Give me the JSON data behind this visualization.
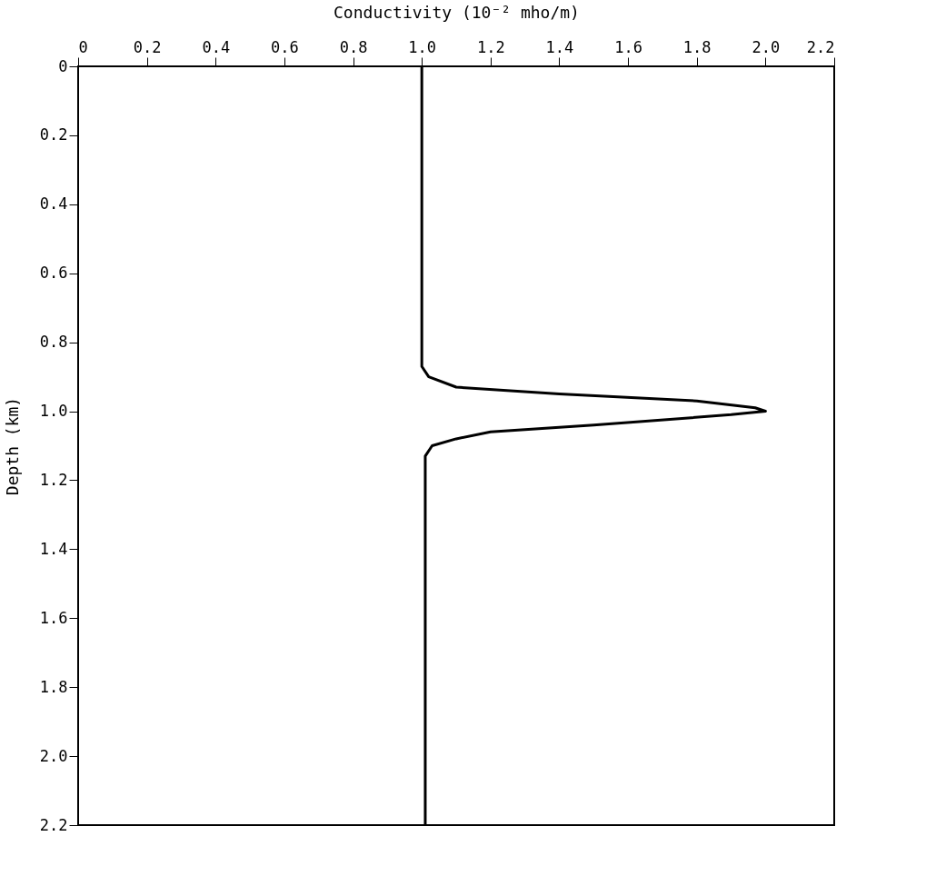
{
  "chart_data": {
    "type": "line",
    "xlabel": "Conductivity (10⁻² mho/m)",
    "ylabel": "Depth (km)",
    "series": [
      {
        "color": "#000000",
        "x": [
          1.0,
          1.0,
          1.02,
          1.1,
          1.4,
          1.8,
          1.97,
          2.0,
          1.9,
          1.5,
          1.2,
          1.1,
          1.03,
          1.01,
          1.01
        ],
        "values": [
          0,
          0.87,
          0.9,
          0.93,
          0.95,
          0.97,
          0.99,
          1.0,
          1.01,
          1.04,
          1.06,
          1.08,
          1.1,
          1.13,
          2.2
        ]
      }
    ],
    "xlim": [
      0,
      2.2
    ],
    "ylim": [
      2.2,
      0
    ],
    "xticks": [
      0,
      0.2,
      0.4,
      0.6,
      0.8,
      {
        "value": 1,
        "label": "1.0"
      },
      1.2,
      1.4,
      1.6,
      1.8,
      {
        "value": 2,
        "label": "2.0"
      },
      2.2
    ],
    "yticks": [
      0,
      0.2,
      0.4,
      0.6,
      0.8,
      {
        "value": 1,
        "label": "1.0"
      },
      1.2,
      1.4,
      1.6,
      1.8,
      {
        "value": 2,
        "label": "2.0"
      },
      2.2
    ],
    "grid": false,
    "marker": "none",
    "line_style": "solid"
  }
}
